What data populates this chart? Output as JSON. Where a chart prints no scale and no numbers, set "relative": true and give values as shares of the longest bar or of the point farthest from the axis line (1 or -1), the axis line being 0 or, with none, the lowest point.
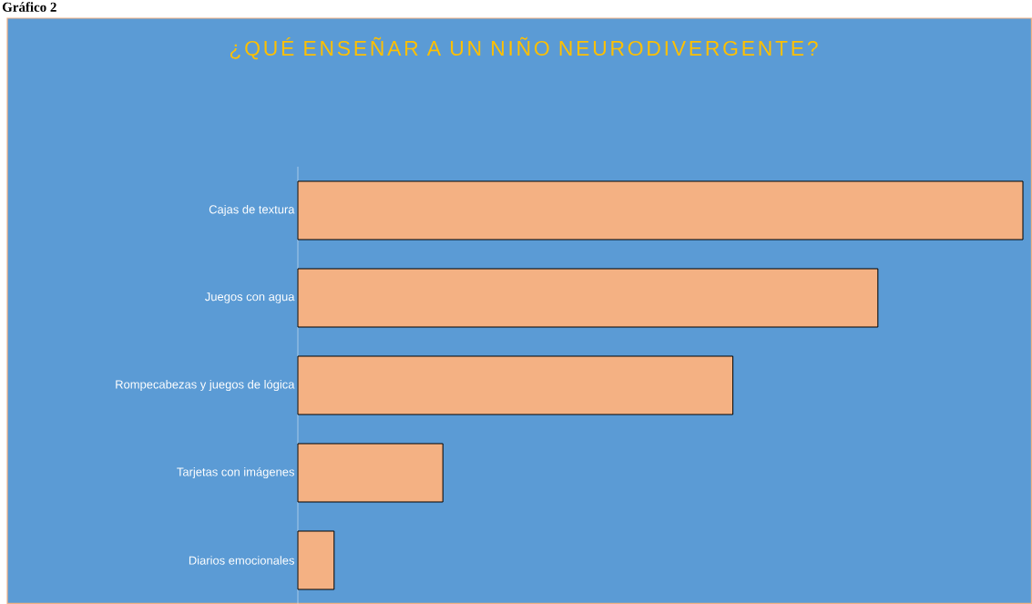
{
  "chart_data": {
    "type": "bar",
    "orientation": "horizontal",
    "relative": true,
    "title": "¿QUÉ ENSEÑAR A UN NIÑO NEURODIVERGENTE?",
    "annotations": [
      "Gráfico 2"
    ],
    "categories": [
      "Cajas de textura",
      "Juegos con agua",
      "Rompecabezas y juegos de lógica",
      "Tarjetas con imágenes",
      "Diarios emocionales"
    ],
    "values": [
      1,
      0.8,
      0.6,
      0.2,
      0.05
    ],
    "color": "#f4b183"
  }
}
